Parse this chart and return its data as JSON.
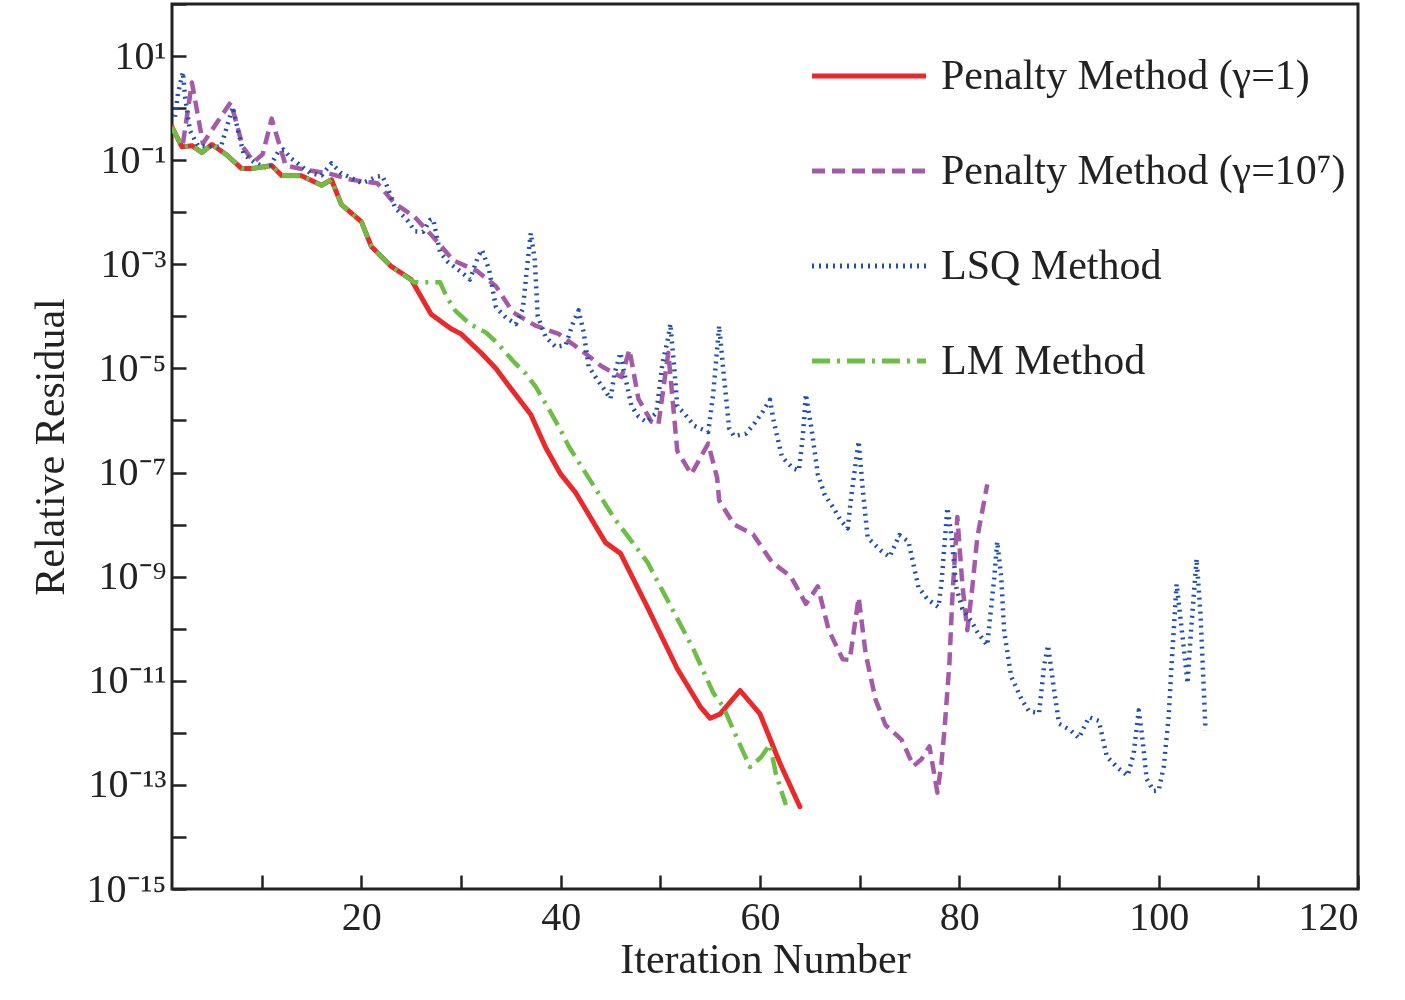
{
  "chart_data": {
    "type": "line",
    "xlabel": "Iteration Number",
    "ylabel": "Relative Residual",
    "log": "y",
    "legend": "top right",
    "xlim": [
      1,
      120
    ],
    "xticks": [
      {
        "value": 10,
        "label": null
      },
      20,
      {
        "value": 30,
        "label": null
      },
      40,
      {
        "value": 50,
        "label": null
      },
      60,
      {
        "value": 70,
        "label": null
      },
      80,
      {
        "value": 90,
        "label": null
      },
      100,
      {
        "value": 110,
        "label": null
      },
      120
    ],
    "ylim": [
      1e-15,
      100
    ],
    "yticks": [
      {
        "value": 1e-15,
        "label": "10⁻¹⁵"
      },
      {
        "value": 1e-14,
        "label": null
      },
      {
        "value": 1e-13,
        "label": "10⁻¹³"
      },
      {
        "value": 1e-12,
        "label": null
      },
      {
        "value": 1e-11,
        "label": "10⁻¹¹"
      },
      {
        "value": 1e-10,
        "label": null
      },
      {
        "value": 1e-09,
        "label": "10⁻⁹"
      },
      {
        "value": 1e-08,
        "label": null
      },
      {
        "value": 1e-07,
        "label": "10⁻⁷"
      },
      {
        "value": 1e-06,
        "label": null
      },
      {
        "value": 1e-05,
        "label": "10⁻⁵"
      },
      {
        "value": 0.0001,
        "label": null
      },
      {
        "value": 0.001,
        "label": "10⁻³"
      },
      {
        "value": 0.01,
        "label": null
      },
      {
        "value": 0.1,
        "label": "10⁻¹"
      },
      {
        "value": 1,
        "label": null
      },
      {
        "value": 10,
        "label": "10¹"
      },
      {
        "value": 100,
        "label": null
      }
    ],
    "series": [
      {
        "name": "Penalty Method (γ=1)",
        "color": "#ea2a2a",
        "line_style": "solid",
        "x": [
          1,
          2,
          3,
          4,
          5,
          6.4,
          8,
          9,
          11,
          12,
          14,
          16,
          17,
          18,
          20,
          21,
          23,
          25,
          27,
          29,
          30,
          32,
          33.5,
          35,
          37,
          38.5,
          40,
          41.5,
          44.5,
          46,
          48.7,
          51.7,
          54,
          55,
          56,
          58,
          60,
          62,
          64
        ],
        "values": [
          0.43,
          0.18,
          0.19,
          0.14,
          0.2,
          0.13,
          0.069,
          0.069,
          0.079,
          0.051,
          0.05,
          0.033,
          0.042,
          0.014,
          0.0066,
          0.0022,
          0.00091,
          0.00051,
          0.00011,
          5.8e-05,
          4.6e-05,
          2e-05,
          1e-05,
          4.1e-06,
          1.3e-06,
          3e-07,
          9.3e-08,
          4.1e-08,
          4.5e-09,
          2.8e-09,
          2.6e-10,
          1.7e-11,
          3.2e-12,
          1.9e-12,
          2.3e-12,
          6.5e-12,
          2.3e-12,
          2.6e-13,
          3.8e-14
        ]
      },
      {
        "name": "Penalty Method (γ=10⁷)",
        "color": "#a45aa8",
        "line_style": "dashed",
        "x": [
          2.1,
          3,
          4.1,
          6.9,
          8.1,
          9.2,
          10.1,
          11,
          12.4,
          14.4,
          16.7,
          19,
          21.6,
          23.3,
          25.3,
          27.3,
          29.2,
          31.6,
          33.5,
          35.2,
          37.5,
          39.8,
          42.1,
          44.1,
          46.1,
          46.9,
          47.8,
          49.1,
          49.8,
          50.8,
          51.7,
          53.1,
          54.8,
          55.7,
          55.9,
          57.4,
          59.3,
          61.2,
          63.1,
          64.6,
          65.8,
          66.9,
          68.3,
          69,
          69.9,
          70.6,
          71.6,
          72.6,
          74.2,
          75.4,
          76.2,
          77,
          77.8,
          78.2,
          78.5,
          79,
          79.3,
          79.8,
          80.3,
          80.8,
          81.3,
          81.8,
          82.8
        ],
        "values": [
          0.21,
          3.1,
          0.21,
          1.3,
          0.18,
          0.093,
          0.13,
          0.63,
          0.079,
          0.065,
          0.056,
          0.042,
          0.036,
          0.015,
          0.0083,
          0.0032,
          0.0012,
          0.00074,
          0.00038,
          0.00012,
          6.6e-05,
          4.6e-05,
          2.2e-05,
          1.1e-05,
          6.8e-06,
          2.3e-05,
          2.6e-06,
          9.5e-07,
          8.3e-07,
          2e-05,
          2.6e-07,
          9.3e-08,
          3.6e-07,
          7.9e-08,
          2.9e-08,
          1e-08,
          6.5e-09,
          1.9e-09,
          1e-09,
          3e-10,
          6.5e-10,
          9.3e-11,
          2.6e-11,
          2.5e-11,
          4e-10,
          3.3e-11,
          4.3e-12,
          1.4e-12,
          7.4e-13,
          2.3e-13,
          3.1e-13,
          5.5e-13,
          7.1e-14,
          2.6e-13,
          1.1e-12,
          2.1e-11,
          4e-10,
          1.4e-08,
          7.2e-10,
          9.3e-11,
          6.2e-10,
          5.6e-09,
          5.9e-08
        ]
      },
      {
        "name": "LSQ Method",
        "color": "#1f4fae",
        "line_style": "dotted",
        "x": [
          1.3,
          1.6,
          2.1,
          2.3,
          2.8,
          3.6,
          5.9,
          6.6,
          7.1,
          7.7,
          8.2,
          9.4,
          10.7,
          11.7,
          12.2,
          12.9,
          14.9,
          16,
          17,
          18,
          20.1,
          21.5,
          22.1,
          22.6,
          23.4,
          24.6,
          25.4,
          26.2,
          26.9,
          27.2,
          27.9,
          28.7,
          29.9,
          30.9,
          31.7,
          32.1,
          32.8,
          33.5,
          34.5,
          35.5,
          36.2,
          36.7,
          37,
          37.4,
          37.7,
          38.5,
          39.5,
          40.5,
          41.2,
          41.8,
          42.3,
          42.8,
          43.5,
          44.3,
          45,
          45.4,
          46,
          46.4,
          47.1,
          47.8,
          48.6,
          49.6,
          50.2,
          50.8,
          51,
          51.4,
          51.7,
          52.5,
          53.4,
          54.8,
          55.3,
          55.9,
          56.3,
          56.9,
          57.4,
          58.6,
          59.5,
          60.3,
          61,
          61.4,
          62.2,
          63.3,
          63.9,
          64.3,
          64.6,
          65.2,
          65.8,
          66.5,
          67.3,
          68.1,
          68.8,
          69.2,
          69.9,
          70.3,
          70.8,
          72.1,
          73,
          74,
          74.9,
          75.9,
          76.8,
          77.9,
          78.2,
          78.8,
          79.2,
          79.7,
          80.3,
          81.2,
          81.8,
          82.8,
          83.5,
          83.8,
          84.2,
          84.5,
          85.2,
          86.3,
          87,
          88,
          88.5,
          88.9,
          89.5,
          90,
          91.2,
          92,
          93,
          94,
          94.8,
          95.9,
          96.9,
          97.5,
          98,
          98.3,
          98.8,
          99.5,
          100,
          100.5,
          101,
          101.3,
          101.8,
          102.4,
          102.9,
          103.2,
          103.8,
          104.2,
          104.5,
          104.7
        ],
        "values": [
          0.68,
          1.9,
          4.9,
          1.7,
          0.37,
          0.19,
          0.18,
          0.5,
          1.05,
          0.32,
          0.13,
          0.087,
          0.069,
          0.15,
          0.16,
          0.11,
          0.056,
          0.051,
          0.087,
          0.056,
          0.036,
          0.048,
          0.05,
          0.031,
          0.012,
          0.0071,
          0.0043,
          0.0042,
          0.0071,
          0.0074,
          0.0017,
          0.0011,
          0.00074,
          0.00051,
          0.0014,
          0.0019,
          0.00081,
          0.00015,
          9.5e-05,
          7.1e-05,
          0.00014,
          0.0012,
          0.004,
          0.0012,
          0.0001,
          4e-05,
          2.6e-05,
          2.8e-05,
          7.1e-05,
          0.00013,
          5e-05,
          1.1e-05,
          6.8e-06,
          4.1e-06,
          2.6e-06,
          7.9e-06,
          2e-05,
          7.9e-06,
          1.9e-06,
          1.2e-06,
          9.3e-07,
          1.4e-06,
          1.2e-05,
          4e-05,
          7.2e-05,
          1e-05,
          1.9e-06,
          1.3e-06,
          7.9e-07,
          6e-07,
          3.2e-06,
          6.6e-05,
          1e-05,
          7.1e-07,
          5e-07,
          5.6e-07,
          9.1e-07,
          1.5e-06,
          2.5e-06,
          9.1e-07,
          2e-07,
          1.2e-07,
          1.1e-07,
          5e-07,
          3.2e-06,
          6.3e-07,
          9.3e-08,
          3.7e-08,
          2.2e-08,
          1.2e-08,
          8.5e-09,
          4.1e-08,
          4e-07,
          5e-08,
          5.6e-09,
          3.2e-09,
          2.4e-09,
          6.3e-09,
          4.7e-09,
          6.2e-10,
          3.7e-10,
          2.6e-10,
          7.2e-10,
          2.1e-08,
          6.3e-09,
          6.2e-10,
          2.4e-10,
          1.4e-10,
          8.7e-11,
          4.8e-11,
          9.5e-10,
          4.7e-09,
          1e-09,
          8.7e-11,
          1.2e-11,
          4.2e-12,
          2.6e-12,
          2.4e-12,
          1.9e-11,
          4.8e-11,
          6.8e-12,
          1.5e-12,
          1.1e-12,
          7.9e-13,
          2e-12,
          1.7e-12,
          3.5e-13,
          2.1e-13,
          1.5e-13,
          4.1e-13,
          2.7e-12,
          1e-12,
          1.3e-13,
          7.6e-14,
          7.8e-14,
          2.2e-13,
          2e-12,
          2.1e-11,
          7.2e-10,
          6.9e-11,
          8.9e-12,
          6.9e-11,
          2.2e-09,
          1.9e-10,
          8.9e-12,
          1.1e-12
        ]
      },
      {
        "name": "LM Method",
        "color": "#6cbf44",
        "line_style": "dashdot",
        "x": [
          1,
          2,
          3,
          4,
          5,
          6.4,
          8,
          9,
          11,
          12,
          14,
          16,
          17,
          18,
          20,
          21,
          23,
          25.3,
          26.6,
          27.9,
          28.6,
          29.4,
          30.9,
          32.5,
          33.7,
          35.2,
          36.5,
          37.5,
          38.5,
          40,
          40.8,
          45.4,
          48.7,
          51,
          53.3,
          55.3,
          56.3,
          57.8,
          59,
          60.1,
          61,
          61.6,
          62.6
        ],
        "values": [
          0.43,
          0.18,
          0.19,
          0.14,
          0.2,
          0.13,
          0.069,
          0.069,
          0.079,
          0.051,
          0.05,
          0.033,
          0.042,
          0.014,
          0.0066,
          0.0022,
          0.00091,
          0.00045,
          0.00045,
          0.00045,
          0.00023,
          0.00013,
          7.1e-05,
          4.9e-05,
          3e-05,
          1.4e-05,
          7.9e-06,
          4.4e-06,
          2.1e-06,
          6.5e-07,
          3.2e-07,
          1.3e-08,
          1.9e-09,
          2.8e-10,
          4.1e-11,
          5.9e-12,
          3.2e-12,
          7.1e-13,
          2.2e-13,
          3.4e-13,
          6e-13,
          1.6e-13,
          4.1e-14
        ]
      }
    ]
  }
}
